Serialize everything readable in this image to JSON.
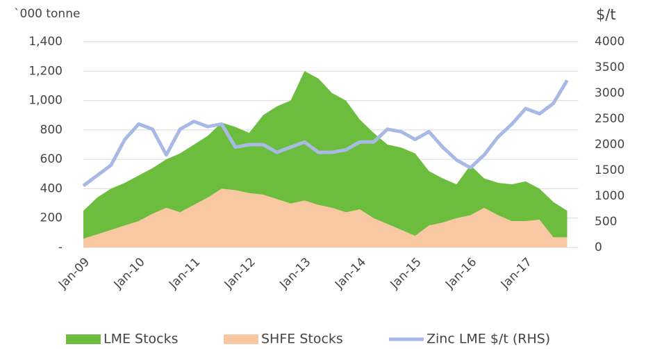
{
  "chart_data": {
    "type": "area",
    "y_label": "`000 tonne",
    "y2_label": "$/t",
    "categories": [
      "Jan-09",
      null,
      null,
      null,
      "Jan-10",
      null,
      null,
      null,
      "Jan-11",
      null,
      null,
      null,
      "Jan-12",
      null,
      null,
      null,
      "Jan-13",
      null,
      null,
      null,
      "Jan-14",
      null,
      null,
      null,
      "Jan-15",
      null,
      null,
      null,
      "Jan-16",
      null,
      null,
      null,
      "Jan-17",
      null,
      null,
      null
    ],
    "series": [
      {
        "name": "LME Stocks",
        "color": "#6cbd3d",
        "type": "area",
        "values": [
          250,
          340,
          400,
          440,
          490,
          540,
          600,
          640,
          700,
          760,
          850,
          820,
          780,
          900,
          960,
          1000,
          1200,
          1150,
          1050,
          1000,
          870,
          780,
          700,
          680,
          640,
          520,
          470,
          430,
          560,
          470,
          440,
          430,
          450,
          400,
          310,
          250
        ]
      },
      {
        "name": "SHFE Stocks",
        "color": "#f8c8a2",
        "type": "area",
        "values": [
          60,
          90,
          120,
          150,
          180,
          230,
          270,
          240,
          290,
          340,
          400,
          390,
          370,
          360,
          330,
          300,
          320,
          290,
          270,
          240,
          260,
          200,
          160,
          120,
          80,
          150,
          170,
          200,
          220,
          270,
          220,
          180,
          180,
          190,
          70,
          70
        ]
      },
      {
        "name": "Zinc LME $/t (RHS)",
        "color": "#a8b9e6",
        "type": "line",
        "axis": "y2",
        "values": [
          1200,
          1400,
          1600,
          2100,
          2400,
          2300,
          1800,
          2300,
          2450,
          2350,
          2400,
          1950,
          2000,
          2000,
          1850,
          1950,
          2050,
          1850,
          1850,
          1900,
          2050,
          2050,
          2300,
          2250,
          2100,
          2250,
          1950,
          1700,
          1550,
          1800,
          2150,
          2400,
          2700,
          2600,
          2800,
          3250
        ]
      }
    ],
    "ylim": [
      0,
      1400
    ],
    "yticks": [
      {
        "value": 0,
        "label": "-"
      },
      200,
      400,
      600,
      800,
      {
        "value": 1000,
        "label": "1,000"
      },
      {
        "value": 1200,
        "label": "1,200"
      },
      {
        "value": 1400,
        "label": "1,400"
      }
    ],
    "y2lim": [
      0,
      4000
    ],
    "y2ticks": [
      0,
      500,
      1000,
      1500,
      2000,
      2500,
      3000,
      3500,
      4000
    ],
    "grid": true,
    "legend": "bottom"
  }
}
